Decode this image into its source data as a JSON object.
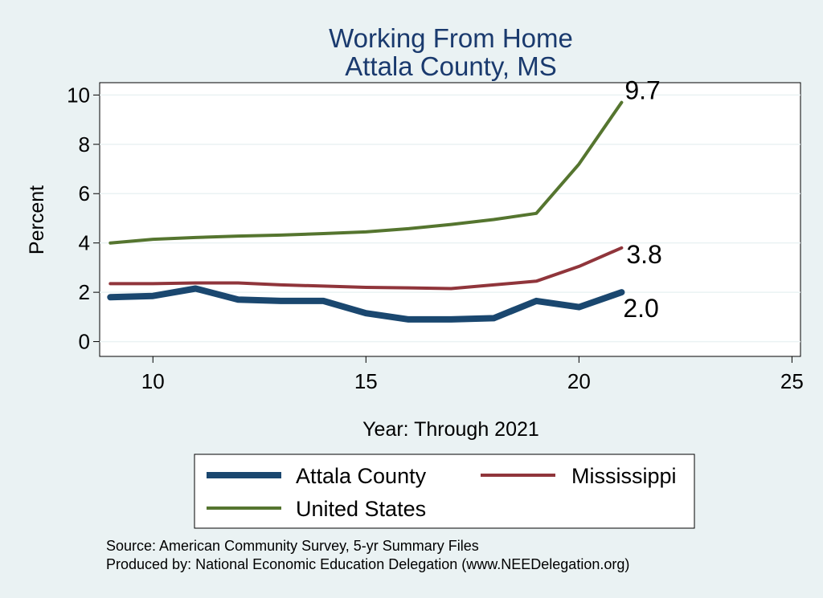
{
  "chart_data": {
    "type": "line",
    "title": [
      "Working From Home",
      "Attala County, MS"
    ],
    "xlabel": "Year: Through 2021",
    "ylabel": "Percent",
    "xlim": [
      8.75,
      25.2
    ],
    "ylim": [
      -0.6,
      10.5
    ],
    "xticks": [
      10,
      15,
      20,
      25
    ],
    "yticks": [
      0,
      2,
      4,
      6,
      8,
      10
    ],
    "grid": true,
    "legend_position": "bottom",
    "series": [
      {
        "name": "Attala County",
        "color": "#1a476f",
        "x": [
          9,
          10,
          11,
          12,
          13,
          14,
          15,
          16,
          17,
          18,
          19,
          20,
          21
        ],
        "values": [
          1.8,
          1.85,
          2.15,
          1.7,
          1.65,
          1.65,
          1.15,
          0.9,
          0.9,
          0.95,
          1.65,
          1.4,
          2.0
        ],
        "end_label": "2.0"
      },
      {
        "name": "Mississippi",
        "color": "#90353b",
        "x": [
          9,
          10,
          11,
          12,
          13,
          14,
          15,
          16,
          17,
          18,
          19,
          20,
          21
        ],
        "values": [
          2.35,
          2.35,
          2.38,
          2.38,
          2.3,
          2.25,
          2.2,
          2.18,
          2.15,
          2.3,
          2.45,
          3.05,
          3.8
        ],
        "end_label": "3.8"
      },
      {
        "name": "United States",
        "color": "#55752f",
        "x": [
          9,
          10,
          11,
          12,
          13,
          14,
          15,
          16,
          17,
          18,
          19,
          20,
          21
        ],
        "values": [
          4.0,
          4.15,
          4.22,
          4.28,
          4.32,
          4.38,
          4.45,
          4.58,
          4.75,
          4.95,
          5.2,
          7.2,
          9.7
        ],
        "end_label": "9.7"
      }
    ]
  },
  "notes": [
    "Source: American Community Survey, 5-yr Summary Files",
    "Produced by: National Economic Education Delegation (www.NEEDelegation.org)"
  ]
}
